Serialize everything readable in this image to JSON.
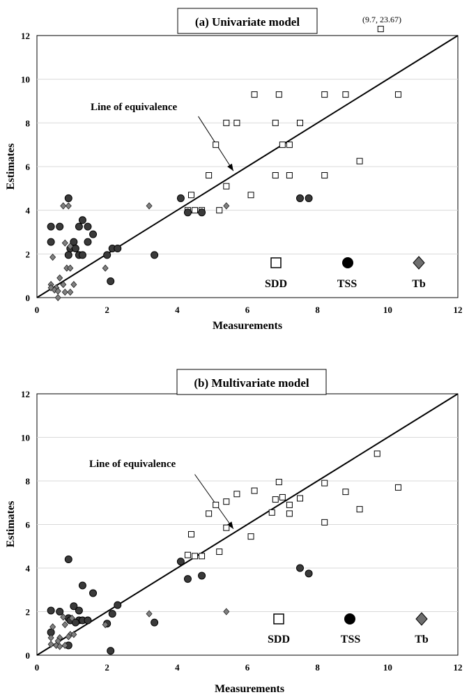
{
  "chart_data": [
    {
      "type": "scatter",
      "title": "(a) Univariate model",
      "xlabel": "Measurements",
      "ylabel": "Estimates",
      "xlim": [
        0,
        12
      ],
      "ylim": [
        0,
        12
      ],
      "xticks": [
        0,
        2,
        4,
        6,
        8,
        10,
        12
      ],
      "yticks": [
        0,
        2,
        4,
        6,
        8,
        10,
        12
      ],
      "reference_line": {
        "label": "Line of equivalence",
        "x": [
          0,
          12
        ],
        "y": [
          0,
          12
        ],
        "arrow_from": [
          4.6,
          8.3
        ],
        "arrow_to": [
          5.6,
          5.8
        ]
      },
      "outlier_annotation": {
        "text": "(9.7, 23.67)",
        "x": 9.8,
        "y": 12.3
      },
      "series": [
        {
          "name": "SDD",
          "marker": "square",
          "points": [
            [
              9.8,
              12.3
            ],
            [
              6.2,
              9.3
            ],
            [
              6.9,
              9.3
            ],
            [
              8.2,
              9.3
            ],
            [
              8.8,
              9.3
            ],
            [
              10.3,
              9.3
            ],
            [
              5.4,
              8.0
            ],
            [
              5.7,
              8.0
            ],
            [
              6.8,
              8.0
            ],
            [
              7.5,
              8.0
            ],
            [
              5.1,
              7.0
            ],
            [
              7.0,
              7.0
            ],
            [
              7.2,
              7.0
            ],
            [
              4.9,
              5.6
            ],
            [
              6.8,
              5.6
            ],
            [
              7.2,
              5.6
            ],
            [
              8.2,
              5.6
            ],
            [
              9.2,
              6.25
            ],
            [
              5.4,
              5.1
            ],
            [
              4.4,
              4.7
            ],
            [
              6.1,
              4.7
            ],
            [
              4.3,
              4.0
            ],
            [
              4.5,
              4.0
            ],
            [
              4.7,
              4.0
            ],
            [
              5.2,
              4.0
            ]
          ]
        },
        {
          "name": "TSS",
          "marker": "circle",
          "points": [
            [
              0.4,
              3.25
            ],
            [
              0.65,
              3.25
            ],
            [
              1.2,
              3.25
            ],
            [
              1.45,
              3.25
            ],
            [
              1.3,
              3.55
            ],
            [
              0.4,
              2.55
            ],
            [
              0.9,
              4.55
            ],
            [
              1.6,
              2.9
            ],
            [
              1.05,
              2.55
            ],
            [
              1.45,
              2.55
            ],
            [
              0.95,
              2.25
            ],
            [
              1.1,
              2.25
            ],
            [
              0.9,
              1.95
            ],
            [
              1.2,
              1.95
            ],
            [
              1.3,
              1.95
            ],
            [
              2.0,
              1.95
            ],
            [
              2.15,
              2.25
            ],
            [
              2.3,
              2.25
            ],
            [
              2.1,
              0.75
            ],
            [
              3.35,
              1.95
            ],
            [
              4.1,
              4.55
            ],
            [
              4.3,
              3.9
            ],
            [
              4.7,
              3.9
            ],
            [
              7.5,
              4.55
            ],
            [
              7.75,
              4.55
            ]
          ]
        },
        {
          "name": "Tb",
          "marker": "diamond",
          "points": [
            [
              0.75,
              4.2
            ],
            [
              0.9,
              4.2
            ],
            [
              0.8,
              2.5
            ],
            [
              0.95,
              2.35
            ],
            [
              0.45,
              1.85
            ],
            [
              0.85,
              1.35
            ],
            [
              0.95,
              1.35
            ],
            [
              1.95,
              1.35
            ],
            [
              0.65,
              0.9
            ],
            [
              0.75,
              0.6
            ],
            [
              1.05,
              0.6
            ],
            [
              0.4,
              0.6
            ],
            [
              0.4,
              0.45
            ],
            [
              0.55,
              0.45
            ],
            [
              0.5,
              0.35
            ],
            [
              0.6,
              0.3
            ],
            [
              0.8,
              0.25
            ],
            [
              0.95,
              0.25
            ],
            [
              0.6,
              0.0
            ],
            [
              3.2,
              4.2
            ],
            [
              5.4,
              4.2
            ]
          ]
        }
      ]
    },
    {
      "type": "scatter",
      "title": "(b) Multivariate model",
      "xlabel": "Measurements",
      "ylabel": "Estimates",
      "xlim": [
        0,
        12
      ],
      "ylim": [
        0,
        12
      ],
      "xticks": [
        0,
        2,
        4,
        6,
        8,
        10,
        12
      ],
      "yticks": [
        0,
        2,
        4,
        6,
        8,
        10,
        12
      ],
      "reference_line": {
        "label": "Line of equivalence",
        "x": [
          0,
          12
        ],
        "y": [
          0,
          12
        ],
        "arrow_from": [
          4.5,
          8.3
        ],
        "arrow_to": [
          5.6,
          5.8
        ]
      },
      "series": [
        {
          "name": "SDD",
          "marker": "square",
          "points": [
            [
              9.7,
              9.25
            ],
            [
              6.9,
              7.95
            ],
            [
              8.2,
              7.9
            ],
            [
              10.3,
              7.7
            ],
            [
              6.2,
              7.55
            ],
            [
              8.8,
              7.5
            ],
            [
              5.7,
              7.4
            ],
            [
              7.0,
              7.25
            ],
            [
              7.5,
              7.2
            ],
            [
              6.8,
              7.15
            ],
            [
              5.4,
              7.05
            ],
            [
              5.1,
              6.9
            ],
            [
              7.2,
              6.9
            ],
            [
              9.2,
              6.7
            ],
            [
              4.9,
              6.5
            ],
            [
              6.7,
              6.55
            ],
            [
              7.2,
              6.5
            ],
            [
              8.2,
              6.1
            ],
            [
              5.4,
              5.85
            ],
            [
              4.4,
              5.55
            ],
            [
              6.1,
              5.45
            ],
            [
              5.2,
              4.75
            ],
            [
              4.3,
              4.6
            ],
            [
              4.5,
              4.55
            ],
            [
              4.7,
              4.55
            ]
          ]
        },
        {
          "name": "TSS",
          "marker": "circle",
          "points": [
            [
              0.9,
              4.4
            ],
            [
              1.3,
              3.2
            ],
            [
              1.6,
              2.85
            ],
            [
              1.05,
              2.25
            ],
            [
              2.3,
              2.3
            ],
            [
              0.4,
              2.05
            ],
            [
              0.65,
              2.0
            ],
            [
              1.2,
              2.05
            ],
            [
              2.15,
              1.9
            ],
            [
              0.9,
              1.7
            ],
            [
              0.95,
              1.6
            ],
            [
              1.2,
              1.6
            ],
            [
              1.3,
              1.6
            ],
            [
              1.45,
              1.6
            ],
            [
              1.1,
              1.5
            ],
            [
              3.35,
              1.5
            ],
            [
              2.0,
              1.45
            ],
            [
              0.4,
              1.05
            ],
            [
              0.9,
              0.45
            ],
            [
              2.1,
              0.2
            ],
            [
              4.1,
              4.3
            ],
            [
              4.3,
              3.5
            ],
            [
              4.7,
              3.65
            ],
            [
              7.5,
              4.0
            ],
            [
              7.75,
              3.75
            ]
          ]
        },
        {
          "name": "Tb",
          "marker": "diamond",
          "points": [
            [
              0.75,
              1.75
            ],
            [
              1.0,
              1.7
            ],
            [
              0.8,
              1.4
            ],
            [
              1.95,
              1.4
            ],
            [
              0.45,
              1.3
            ],
            [
              0.4,
              0.8
            ],
            [
              0.65,
              0.8
            ],
            [
              0.95,
              0.95
            ],
            [
              1.05,
              0.95
            ],
            [
              0.6,
              0.65
            ],
            [
              0.9,
              0.85
            ],
            [
              0.4,
              0.5
            ],
            [
              0.55,
              0.45
            ],
            [
              0.65,
              0.4
            ],
            [
              0.8,
              0.45
            ],
            [
              3.2,
              1.9
            ],
            [
              5.4,
              2.0
            ]
          ]
        }
      ]
    }
  ]
}
